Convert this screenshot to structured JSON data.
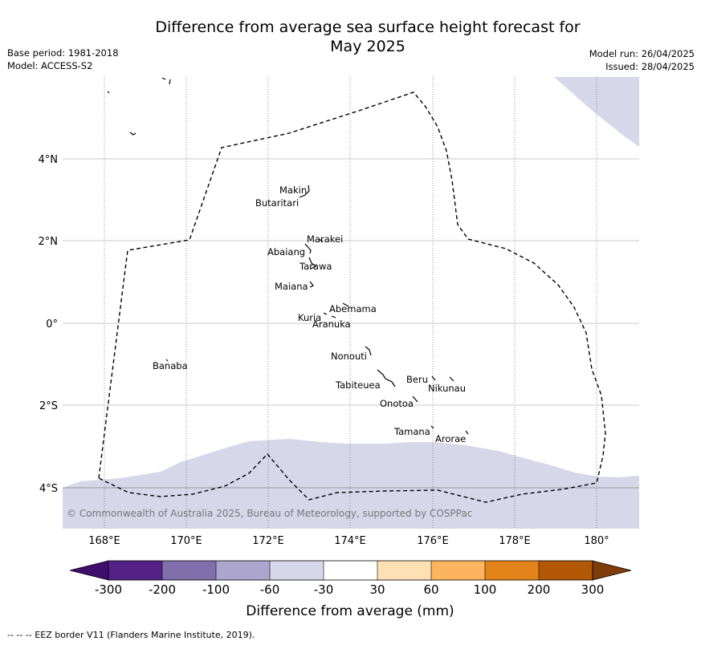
{
  "title_line1": "Difference from average sea surface height forecast for",
  "title_line2": "May 2025",
  "base_period": "Base period: 1981-2018",
  "model": "Model: ACCESS-S2",
  "model_run": "Model run: 26/04/2025",
  "issued": "Issued: 28/04/2025",
  "copyright": "© Commonwealth of Australia 2025, Bureau of Meteorology, supported by COSPPac",
  "footer_note": "--  --  -- EEZ border V11 (Flanders Marine Institute, 2019).",
  "lon_ticks": [
    "168°E",
    "170°E",
    "172°E",
    "174°E",
    "176°E",
    "178°E",
    "180°"
  ],
  "lat_ticks": [
    "4°N",
    "2°N",
    "0°",
    "2°S",
    "4°S"
  ],
  "islands": [
    {
      "name": "Makin"
    },
    {
      "name": "Butaritari"
    },
    {
      "name": "Marakei"
    },
    {
      "name": "Abaiang"
    },
    {
      "name": "Tarawa"
    },
    {
      "name": "Maiana"
    },
    {
      "name": "Abemama"
    },
    {
      "name": "Kuria"
    },
    {
      "name": "Aranuka"
    },
    {
      "name": "Nonouti"
    },
    {
      "name": "Banaba"
    },
    {
      "name": "Beru"
    },
    {
      "name": "Tabiteuea"
    },
    {
      "name": "Nikunau"
    },
    {
      "name": "Onotoa"
    },
    {
      "name": "Tamana"
    },
    {
      "name": "Arorae"
    }
  ],
  "colorbar": {
    "title": "Difference from average (mm)",
    "labels": [
      "-300",
      "-200",
      "-100",
      "-60",
      "-30",
      "30",
      "60",
      "100",
      "200",
      "300"
    ],
    "colors": [
      "#3f0d6b",
      "#542287",
      "#7f6fab",
      "#aca6cf",
      "#d7d7ea",
      "#ffffff",
      "#fde0b4",
      "#fdb45e",
      "#e3841a",
      "#b35806",
      "#7f3b08"
    ]
  }
}
